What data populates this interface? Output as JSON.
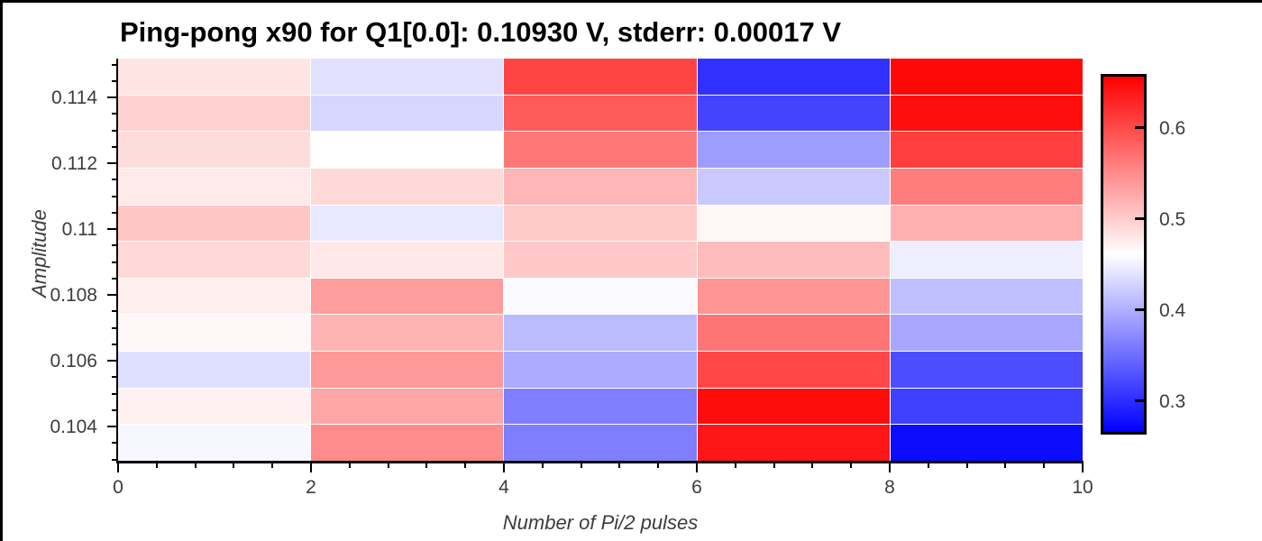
{
  "figure": {
    "title": "Ping-pong x90 for Q1[0.0]: 0.10930 V, stderr: 0.00017 V",
    "xlabel": "Number of Pi/2 pulses",
    "ylabel": "Amplitude"
  },
  "axes": {
    "x_range": [
      0,
      10
    ],
    "x_major_ticks": [
      0,
      2,
      4,
      6,
      8,
      10
    ],
    "x_tick_labels": [
      "0",
      "2",
      "4",
      "6",
      "8",
      "10"
    ],
    "x_minor_step": 0.4,
    "y_range": [
      0.10296,
      0.11518
    ],
    "y_major_ticks": [
      0.114,
      0.112,
      0.11,
      0.108,
      0.106,
      0.104
    ],
    "y_tick_labels": [
      "0.114",
      "0.112",
      "0.11",
      "0.108",
      "0.106",
      "0.104"
    ],
    "y_minor_step": 0.0005
  },
  "colorbar": {
    "tick_values": [
      0.6,
      0.5,
      0.4,
      0.3
    ],
    "tick_labels": [
      "0.6",
      "0.5",
      "0.4",
      "0.3"
    ],
    "top_color": "#ff0000",
    "mid_color": "#ffffff",
    "bottom_color": "#0000ff"
  },
  "chart_data": {
    "type": "heatmap",
    "title": "Ping-pong x90 for Q1[0.0]: 0.10930 V, stderr: 0.00017 V",
    "xlabel": "Number of Pi/2 pulses",
    "ylabel": "Amplitude",
    "colormap": "bwr",
    "zmin": 0.263,
    "zmax": 0.659,
    "x": [
      1,
      3,
      5,
      7,
      9
    ],
    "y": [
      0.1038,
      0.1049,
      0.106,
      0.1071,
      0.1082,
      0.1093,
      0.1104,
      0.1115,
      0.1126,
      0.1137,
      0.1148
    ],
    "z": [
      [
        0.455,
        0.55,
        0.361,
        0.642,
        0.272
      ],
      [
        0.472,
        0.53,
        0.362,
        0.649,
        0.313
      ],
      [
        0.436,
        0.54,
        0.396,
        0.604,
        0.323
      ],
      [
        0.467,
        0.519,
        0.408,
        0.568,
        0.393
      ],
      [
        0.474,
        0.537,
        0.458,
        0.543,
        0.411
      ],
      [
        0.491,
        0.479,
        0.504,
        0.513,
        0.448
      ],
      [
        0.505,
        0.444,
        0.502,
        0.468,
        0.522
      ],
      [
        0.478,
        0.491,
        0.518,
        0.419,
        0.562
      ],
      [
        0.488,
        0.461,
        0.566,
        0.385,
        0.611
      ],
      [
        0.496,
        0.429,
        0.588,
        0.316,
        0.648
      ],
      [
        0.482,
        0.438,
        0.606,
        0.301,
        0.653
      ]
    ]
  }
}
